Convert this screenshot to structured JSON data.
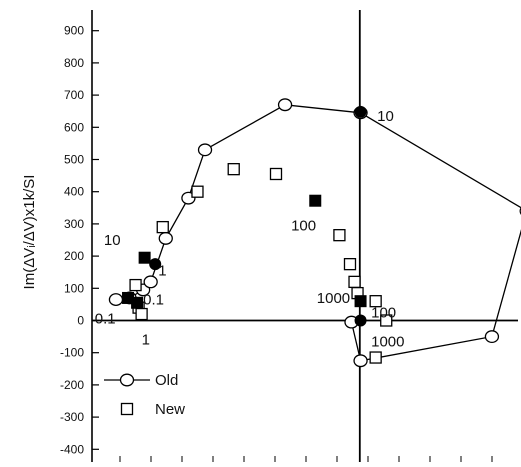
{
  "chart_data": {
    "type": "scatter",
    "title": "",
    "ylabel": "Im(ΔVᵢ/ΔV)x1k/SI",
    "xlabel": "",
    "ylim": [
      -400,
      900
    ],
    "xlim": [
      -2,
      27
    ],
    "yticks": [
      -400,
      -300,
      -200,
      -100,
      0,
      100,
      200,
      300,
      400,
      500,
      600,
      700,
      800,
      900
    ],
    "grid": false,
    "legend_position": "bottom-left",
    "reference_lines": {
      "x": 15.55,
      "y": 0
    },
    "series": [
      {
        "name": "Old",
        "marker": "circle-open",
        "line": true,
        "points": [
          {
            "x": -0.6,
            "y": 65
          },
          {
            "x": 0.3,
            "y": 70
          },
          {
            "x": 1.2,
            "y": 95
          },
          {
            "x": 1.7,
            "y": 120
          },
          {
            "x": 2.7,
            "y": 255
          },
          {
            "x": 4.2,
            "y": 380
          },
          {
            "x": 5.3,
            "y": 530
          },
          {
            "x": 10.6,
            "y": 670
          },
          {
            "x": 15.6,
            "y": 645
          },
          {
            "x": 26.6,
            "y": 340
          },
          {
            "x": 24.3,
            "y": -50
          },
          {
            "x": 15.6,
            "y": -125
          },
          {
            "x": 15.0,
            "y": -5
          }
        ]
      },
      {
        "name": "",
        "marker": "circle-filled",
        "line": false,
        "points": [
          {
            "x": 15.6,
            "y": 648
          },
          {
            "x": 2.0,
            "y": 175
          },
          {
            "x": 15.6,
            "y": 0
          }
        ]
      },
      {
        "name": "New",
        "marker": "square-open",
        "line": false,
        "points": [
          {
            "x": 0.7,
            "y": 110
          },
          {
            "x": 0.9,
            "y": 40
          },
          {
            "x": 1.1,
            "y": 20
          },
          {
            "x": 2.5,
            "y": 290
          },
          {
            "x": 4.8,
            "y": 400
          },
          {
            "x": 7.2,
            "y": 470
          },
          {
            "x": 10.0,
            "y": 455
          },
          {
            "x": 14.2,
            "y": 265
          },
          {
            "x": 14.9,
            "y": 175
          },
          {
            "x": 15.2,
            "y": 120
          },
          {
            "x": 15.4,
            "y": 85
          },
          {
            "x": 16.6,
            "y": 60
          },
          {
            "x": 17.3,
            "y": 0
          },
          {
            "x": 16.6,
            "y": -115
          }
        ]
      },
      {
        "name": "",
        "marker": "square-filled",
        "line": false,
        "points": [
          {
            "x": 1.3,
            "y": 195
          },
          {
            "x": 0.2,
            "y": 70
          },
          {
            "x": 0.8,
            "y": 55
          },
          {
            "x": 12.6,
            "y": 372
          },
          {
            "x": 15.6,
            "y": 60
          }
        ]
      }
    ],
    "annotations": [
      {
        "text": "10",
        "x": 16.7,
        "y": 620
      },
      {
        "text": "100",
        "x": 11.0,
        "y": 280
      },
      {
        "text": "10",
        "x": -1.4,
        "y": 235
      },
      {
        "text": "1",
        "x": 2.2,
        "y": 140
      },
      {
        "text": "0.1",
        "x": 1.2,
        "y": 50
      },
      {
        "text": "0.1",
        "x": -2.0,
        "y": -10
      },
      {
        "text": "1",
        "x": 1.1,
        "y": -75
      },
      {
        "text": "1000",
        "x": 12.7,
        "y": 55
      },
      {
        "text": "100",
        "x": 16.3,
        "y": 10
      },
      {
        "text": "1000",
        "x": 16.3,
        "y": -80
      }
    ]
  }
}
